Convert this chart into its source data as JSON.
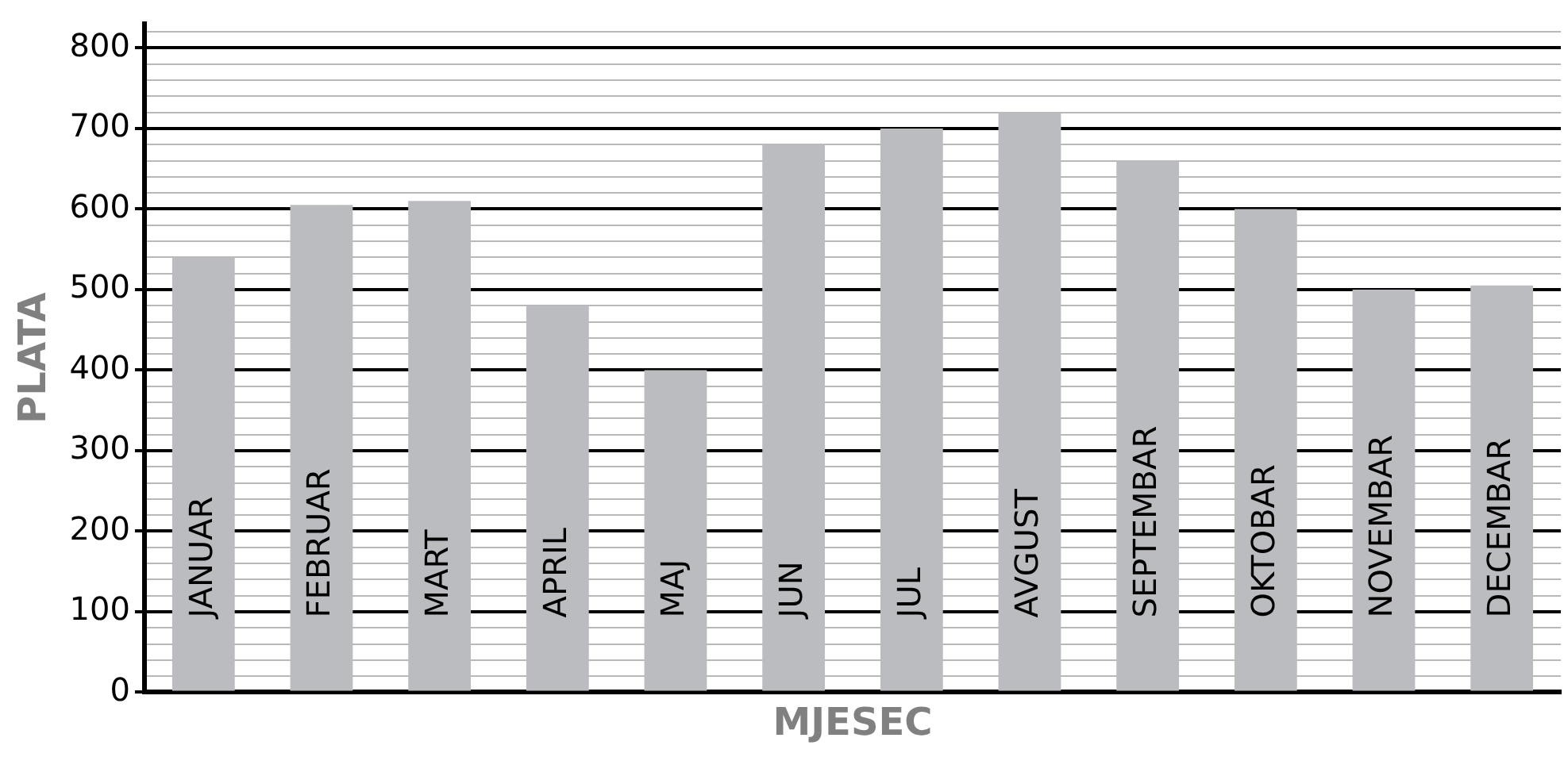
{
  "chart_data": {
    "type": "bar",
    "xlabel": "MJESEC",
    "ylabel": "PLATA",
    "categories": [
      "JANUAR",
      "FEBRUAR",
      "MART",
      "APRIL",
      "MAJ",
      "JUN",
      "JUL",
      "AVGUST",
      "SEPTEMBAR",
      "OKTOBAR",
      "NOVEMBAR",
      "DECEMBAR"
    ],
    "values": [
      540,
      605,
      610,
      480,
      400,
      680,
      700,
      720,
      660,
      600,
      500,
      505
    ],
    "color": "#bbbcc0",
    "ylim": [
      0,
      830
    ],
    "yticks": [
      0,
      {
        "value": 20,
        "label": null
      },
      {
        "value": 40,
        "label": null
      },
      {
        "value": 60,
        "label": null
      },
      {
        "value": 80,
        "label": null
      },
      100,
      {
        "value": 120,
        "label": null
      },
      {
        "value": 140,
        "label": null
      },
      {
        "value": 160,
        "label": null
      },
      {
        "value": 180,
        "label": null
      },
      200,
      {
        "value": 220,
        "label": null
      },
      {
        "value": 240,
        "label": null
      },
      {
        "value": 260,
        "label": null
      },
      {
        "value": 280,
        "label": null
      },
      300,
      {
        "value": 320,
        "label": null
      },
      {
        "value": 340,
        "label": null
      },
      {
        "value": 360,
        "label": null
      },
      {
        "value": 380,
        "label": null
      },
      400,
      {
        "value": 420,
        "label": null
      },
      {
        "value": 440,
        "label": null
      },
      {
        "value": 460,
        "label": null
      },
      {
        "value": 480,
        "label": null
      },
      500,
      {
        "value": 520,
        "label": null
      },
      {
        "value": 540,
        "label": null
      },
      {
        "value": 560,
        "label": null
      },
      {
        "value": 580,
        "label": null
      },
      600,
      {
        "value": 620,
        "label": null
      },
      {
        "value": 640,
        "label": null
      },
      {
        "value": 660,
        "label": null
      },
      {
        "value": 680,
        "label": null
      },
      700,
      {
        "value": 720,
        "label": null
      },
      {
        "value": 740,
        "label": null
      },
      {
        "value": 760,
        "label": null
      },
      {
        "value": 780,
        "label": null
      },
      800,
      {
        "value": 820,
        "label": null
      }
    ],
    "grid": "y",
    "legend": false
  }
}
